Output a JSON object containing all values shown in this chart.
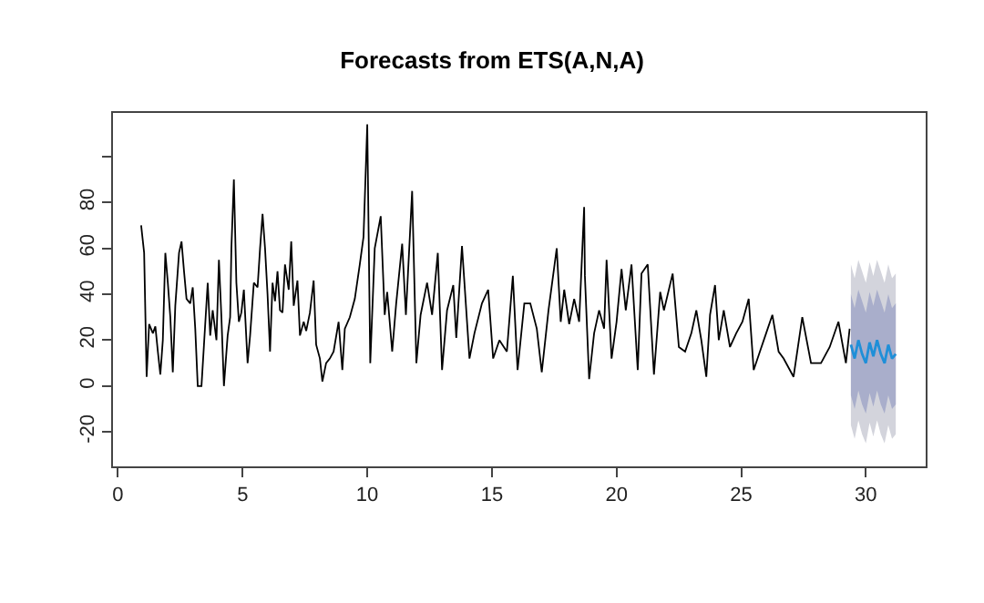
{
  "chart_data": {
    "type": "line",
    "title": "Forecasts from ETS(A,N,A)",
    "xlim": [
      -0.2,
      32.4
    ],
    "xticks": [
      0,
      5,
      10,
      15,
      20,
      25,
      30
    ],
    "ylim": [
      -35,
      119
    ],
    "yticks": [
      -20,
      0,
      20,
      40,
      60,
      80,
      {
        "value": 100,
        "label": null
      }
    ],
    "marker": "none",
    "line_style": "solid",
    "series": [
      {
        "color": "#000000",
        "x": [
          0.93,
          1.05,
          1.15,
          1.25,
          1.4,
          1.5,
          1.6,
          1.7,
          1.8,
          1.9,
          2.0,
          2.1,
          2.2,
          2.3,
          2.45,
          2.55,
          2.65,
          2.75,
          2.9,
          3.0,
          3.1,
          3.2,
          3.35,
          3.45,
          3.6,
          3.7,
          3.8,
          3.95,
          4.05,
          4.15,
          4.25,
          4.4,
          4.5,
          4.55,
          4.65,
          4.75,
          4.85,
          4.95,
          5.05,
          5.2,
          5.3,
          5.45,
          5.6,
          5.7,
          5.8,
          5.9,
          6.0,
          6.1,
          6.2,
          6.3,
          6.4,
          6.5,
          6.6,
          6.7,
          6.85,
          6.95,
          7.05,
          7.2,
          7.3,
          7.45,
          7.55,
          7.7,
          7.85,
          7.95,
          8.1,
          8.2,
          8.35,
          8.5,
          8.65,
          8.85,
          9.0,
          9.1,
          9.3,
          9.5,
          9.7,
          9.85,
          10.0,
          10.12,
          10.3,
          10.54,
          10.7,
          10.8,
          11.0,
          11.16,
          11.4,
          11.55,
          11.8,
          11.97,
          12.14,
          12.4,
          12.6,
          12.83,
          13.0,
          13.2,
          13.45,
          13.57,
          13.8,
          14.1,
          14.3,
          14.6,
          14.85,
          15.05,
          15.3,
          15.6,
          15.84,
          16.03,
          16.3,
          16.54,
          16.8,
          17.0,
          17.27,
          17.6,
          17.76,
          17.9,
          18.1,
          18.3,
          18.5,
          18.7,
          18.73,
          18.9,
          19.1,
          19.3,
          19.5,
          19.6,
          19.8,
          20.0,
          20.2,
          20.37,
          20.6,
          20.85,
          21.0,
          21.25,
          21.5,
          21.75,
          21.9,
          22.25,
          22.5,
          22.75,
          23.0,
          23.2,
          23.4,
          23.6,
          23.75,
          23.95,
          24.1,
          24.3,
          24.55,
          24.8,
          25.05,
          25.3,
          25.5,
          25.75,
          26.0,
          26.25,
          26.5,
          26.7,
          27.1,
          27.45,
          27.8,
          28.2,
          28.55,
          28.9,
          29.2,
          29.35
        ],
        "values": [
          70,
          58,
          4,
          27,
          23,
          26,
          15,
          5,
          20,
          58,
          45,
          30,
          6,
          35,
          58,
          63,
          50,
          38,
          36,
          43,
          25,
          0,
          0,
          18,
          45,
          22,
          33,
          20,
          55,
          30,
          0,
          22,
          30,
          60,
          90,
          45,
          28,
          32,
          42,
          10,
          22,
          45,
          43,
          60,
          75,
          60,
          40,
          15,
          45,
          37,
          50,
          33,
          32,
          53,
          42,
          63,
          35,
          46,
          22,
          28,
          24,
          32,
          46,
          18,
          12,
          2,
          10,
          12,
          15,
          28,
          7,
          25,
          30,
          38,
          53,
          65,
          114,
          10,
          60,
          74,
          31,
          41,
          15,
          36,
          62,
          31,
          85,
          10,
          31,
          45,
          31,
          58,
          7,
          33,
          44,
          21,
          61,
          12,
          23,
          36,
          42,
          12,
          20,
          15,
          48,
          7,
          36,
          36,
          25,
          6,
          33,
          60,
          28,
          42,
          27,
          38,
          28,
          78,
          48,
          3,
          23,
          33,
          25,
          55,
          12,
          28,
          51,
          33,
          53,
          7,
          49,
          53,
          5,
          41,
          33,
          49,
          17,
          15,
          23,
          33,
          20,
          4,
          31,
          44,
          20,
          33,
          17,
          23,
          28,
          38,
          7,
          15,
          23,
          31,
          15,
          12,
          4,
          30,
          10,
          10,
          17,
          28,
          10,
          25
        ]
      },
      {
        "color": "#d3d4dc",
        "x": [
          29.4,
          29.55,
          29.7,
          29.85,
          30.0,
          30.15,
          30.3,
          30.45,
          30.6,
          30.75,
          30.9,
          31.05,
          31.2
        ],
        "values": [
          null,
          null,
          null,
          null,
          null,
          null,
          null,
          null,
          null,
          null,
          null,
          null,
          null
        ],
        "lower": [
          -17,
          -23,
          -15,
          -21,
          -25,
          -16,
          -22,
          -15,
          -21,
          -25,
          -17,
          -23,
          -21
        ],
        "upper": [
          53,
          47,
          55,
          49,
          45,
          54,
          48,
          55,
          49,
          45,
          53,
          47,
          49
        ]
      },
      {
        "color": "#a9aecb",
        "x": [
          29.4,
          29.55,
          29.7,
          29.85,
          30.0,
          30.15,
          30.3,
          30.45,
          30.6,
          30.75,
          30.9,
          31.05,
          31.2
        ],
        "values": [
          null,
          null,
          null,
          null,
          null,
          null,
          null,
          null,
          null,
          null,
          null,
          null,
          null
        ],
        "lower": [
          -4,
          -10,
          -2,
          -8,
          -12,
          -3,
          -9,
          -2,
          -8,
          -12,
          -4,
          -10,
          -8
        ],
        "upper": [
          40,
          34,
          42,
          36,
          32,
          41,
          35,
          42,
          36,
          32,
          40,
          34,
          36
        ]
      },
      {
        "color": "#1f8fd8",
        "x": [
          29.4,
          29.55,
          29.7,
          29.85,
          30.0,
          30.15,
          30.3,
          30.45,
          30.6,
          30.75,
          30.9,
          31.05,
          31.2
        ],
        "values": [
          18,
          12,
          20,
          14,
          10,
          19,
          13,
          20,
          14,
          10,
          18,
          12,
          14
        ]
      }
    ]
  }
}
